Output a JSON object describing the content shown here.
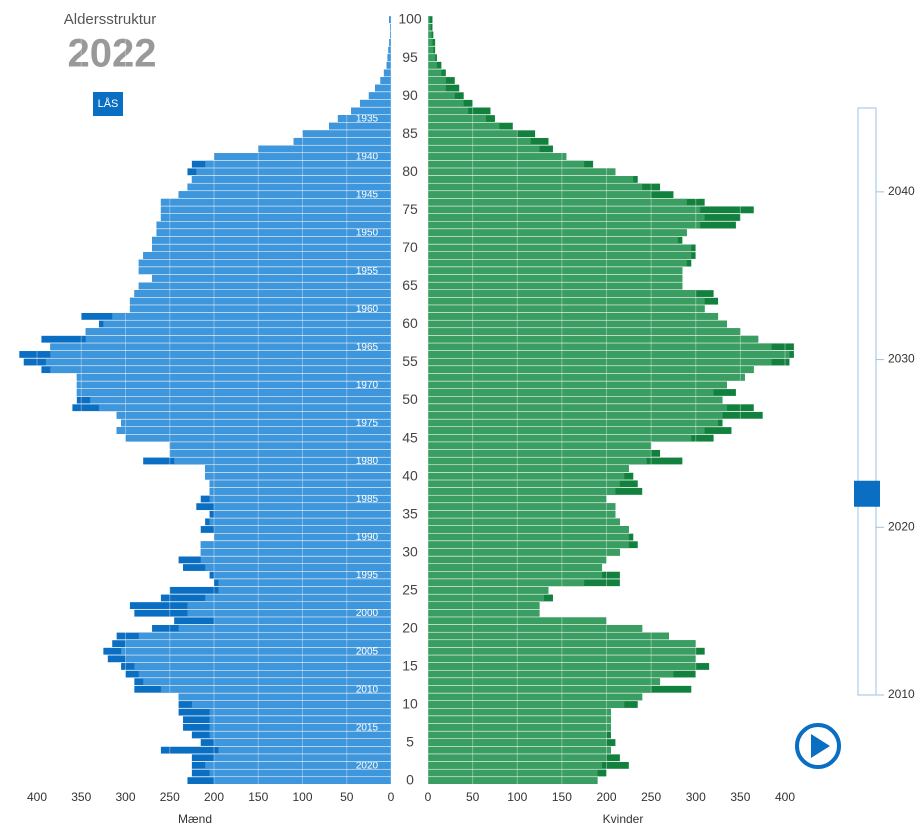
{
  "chart_data": {
    "type": "pyramid",
    "title": "Aldersstruktur",
    "year": 2022,
    "lock_button": "LÅS",
    "categories": [
      0,
      1,
      2,
      3,
      4,
      5,
      6,
      7,
      8,
      9,
      10,
      11,
      12,
      13,
      14,
      15,
      16,
      17,
      18,
      19,
      20,
      21,
      22,
      23,
      24,
      25,
      26,
      27,
      28,
      29,
      30,
      31,
      32,
      33,
      34,
      35,
      36,
      37,
      38,
      39,
      40,
      41,
      42,
      43,
      44,
      45,
      46,
      47,
      48,
      49,
      50,
      51,
      52,
      53,
      54,
      55,
      56,
      57,
      58,
      59,
      60,
      61,
      62,
      63,
      64,
      65,
      66,
      67,
      68,
      69,
      70,
      71,
      72,
      73,
      74,
      75,
      76,
      77,
      78,
      79,
      80,
      81,
      82,
      83,
      84,
      85,
      86,
      87,
      88,
      89,
      90,
      91,
      92,
      93,
      94,
      95,
      96,
      97,
      98,
      99,
      100
    ],
    "age_ticks": [
      0,
      5,
      10,
      15,
      20,
      25,
      30,
      35,
      40,
      45,
      50,
      55,
      60,
      65,
      70,
      75,
      80,
      85,
      90,
      95,
      100
    ],
    "cohort_labels": [
      1935,
      1940,
      1945,
      1950,
      1955,
      1960,
      1965,
      1970,
      1975,
      1980,
      1985,
      1990,
      1995,
      2000,
      2005,
      2010,
      2015,
      2020
    ],
    "xlim": [
      0,
      400
    ],
    "xticks": [
      0,
      50,
      100,
      150,
      200,
      250,
      300,
      350,
      400
    ],
    "series": [
      {
        "name": "Mænd",
        "color": "#3e96dc",
        "dark_color": "#0a6ec3",
        "values": [
          200,
          205,
          210,
          200,
          195,
          200,
          205,
          205,
          205,
          205,
          225,
          240,
          260,
          280,
          285,
          290,
          300,
          305,
          300,
          285,
          240,
          200,
          230,
          230,
          210,
          195,
          195,
          200,
          210,
          215,
          215,
          215,
          200,
          200,
          205,
          200,
          200,
          205,
          205,
          205,
          210,
          210,
          245,
          250,
          250,
          300,
          310,
          305,
          310,
          330,
          340,
          355,
          355,
          355,
          385,
          390,
          385,
          385,
          345,
          345,
          325,
          315,
          295,
          295,
          290,
          285,
          270,
          285,
          285,
          280,
          270,
          270,
          265,
          265,
          260,
          260,
          260,
          240,
          230,
          225,
          220,
          210,
          200,
          150,
          110,
          100,
          70,
          60,
          45,
          35,
          25,
          18,
          12,
          8,
          5,
          4,
          3,
          2,
          1,
          1,
          1
        ],
        "comparison": [
          230,
          225,
          225,
          225,
          260,
          215,
          225,
          235,
          235,
          240,
          240,
          240,
          290,
          290,
          300,
          305,
          320,
          325,
          315,
          310,
          270,
          245,
          290,
          295,
          260,
          250,
          200,
          205,
          235,
          240,
          215,
          215,
          200,
          215,
          210,
          205,
          220,
          215,
          205,
          205,
          210,
          210,
          280,
          250,
          250,
          300,
          310,
          305,
          310,
          360,
          355,
          355,
          355,
          355,
          395,
          415,
          420,
          385,
          395,
          345,
          330,
          350,
          295,
          295,
          290,
          285,
          270,
          285,
          285,
          280,
          270,
          270,
          265,
          265,
          260,
          260,
          260,
          240,
          230,
          225,
          230,
          225,
          200,
          150,
          110,
          100,
          70,
          60,
          45,
          35,
          25,
          18,
          12,
          8,
          5,
          4,
          3,
          2,
          1,
          1,
          2
        ]
      },
      {
        "name": "Kvinder",
        "color": "#3a9e62",
        "dark_color": "#13813e",
        "values": [
          190,
          190,
          195,
          200,
          205,
          200,
          200,
          205,
          205,
          205,
          220,
          240,
          250,
          260,
          275,
          300,
          300,
          300,
          300,
          270,
          240,
          200,
          125,
          125,
          130,
          135,
          175,
          195,
          195,
          200,
          215,
          225,
          225,
          225,
          215,
          210,
          210,
          200,
          210,
          215,
          220,
          225,
          245,
          250,
          250,
          295,
          310,
          325,
          330,
          335,
          330,
          320,
          335,
          355,
          365,
          385,
          405,
          385,
          370,
          350,
          335,
          325,
          310,
          310,
          300,
          285,
          285,
          285,
          290,
          295,
          295,
          280,
          290,
          305,
          310,
          305,
          290,
          250,
          240,
          230,
          210,
          175,
          155,
          125,
          115,
          100,
          80,
          65,
          45,
          40,
          30,
          20,
          20,
          15,
          10,
          8,
          6,
          5,
          4,
          3,
          2
        ],
        "comparison": [
          190,
          200,
          225,
          215,
          205,
          210,
          205,
          205,
          205,
          205,
          235,
          240,
          295,
          260,
          300,
          315,
          300,
          310,
          300,
          270,
          240,
          200,
          125,
          125,
          140,
          135,
          215,
          215,
          195,
          200,
          215,
          235,
          230,
          225,
          215,
          210,
          210,
          200,
          240,
          235,
          230,
          225,
          285,
          260,
          250,
          320,
          340,
          330,
          375,
          365,
          330,
          345,
          335,
          355,
          365,
          405,
          410,
          410,
          370,
          350,
          335,
          325,
          310,
          325,
          320,
          285,
          285,
          285,
          295,
          300,
          300,
          285,
          290,
          345,
          350,
          365,
          310,
          275,
          260,
          235,
          210,
          185,
          155,
          140,
          135,
          120,
          95,
          75,
          70,
          50,
          40,
          35,
          30,
          20,
          15,
          10,
          8,
          8,
          6,
          5,
          5
        ]
      }
    ],
    "slider": {
      "lim": [
        2010,
        2045
      ],
      "ticks": [
        2010,
        2020,
        2030,
        2040
      ],
      "value": 2022
    }
  }
}
